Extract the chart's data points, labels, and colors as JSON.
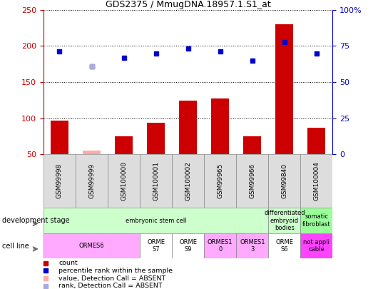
{
  "title": "GDS2375 / MmugDNA.18957.1.S1_at",
  "samples": [
    "GSM99998",
    "GSM99999",
    "GSM100000",
    "GSM100001",
    "GSM100002",
    "GSM99965",
    "GSM99966",
    "GSM99840",
    "GSM100004"
  ],
  "count_values": [
    97,
    55,
    75,
    94,
    124,
    127,
    75,
    230,
    87
  ],
  "count_absent": [
    false,
    true,
    false,
    false,
    false,
    false,
    false,
    false,
    false
  ],
  "rank_values": [
    192,
    172,
    184,
    190,
    196,
    192,
    180,
    205,
    190
  ],
  "rank_absent": [
    false,
    false,
    false,
    false,
    false,
    false,
    false,
    false,
    false
  ],
  "ylim_left": [
    50,
    250
  ],
  "yticks_left": [
    50,
    100,
    150,
    200,
    250
  ],
  "ytick_labels_right": [
    "0",
    "25",
    "50",
    "75",
    "100%"
  ],
  "left_axis_color": "#cc0000",
  "right_axis_color": "#0000cc",
  "bar_color": "#cc0000",
  "bar_absent_color": "#ffaaaa",
  "rank_color": "#0000cc",
  "rank_absent_color": "#aaaadd",
  "dev_stage_groups": [
    {
      "label": "embryonic stem cell",
      "start": 0,
      "end": 7,
      "color": "#ccffcc"
    },
    {
      "label": "differentiated\nembryoid\nbodies",
      "start": 7,
      "end": 8,
      "color": "#ccffcc"
    },
    {
      "label": "somatic\nfibroblast",
      "start": 8,
      "end": 9,
      "color": "#99ff99"
    }
  ],
  "cell_line_groups": [
    {
      "label": "ORMES6",
      "start": 0,
      "end": 3,
      "color": "#ffaaff"
    },
    {
      "label": "ORME\nS7",
      "start": 3,
      "end": 4,
      "color": "#ffffff"
    },
    {
      "label": "ORME\nS9",
      "start": 4,
      "end": 5,
      "color": "#ffffff"
    },
    {
      "label": "ORMES1\n0",
      "start": 5,
      "end": 6,
      "color": "#ffaaff"
    },
    {
      "label": "ORMES1\n3",
      "start": 6,
      "end": 7,
      "color": "#ffaaff"
    },
    {
      "label": "ORME\nS6",
      "start": 7,
      "end": 8,
      "color": "#ffffff"
    },
    {
      "label": "not appli\ncable",
      "start": 8,
      "end": 9,
      "color": "#ff44ff"
    }
  ],
  "legend_items": [
    {
      "label": "count",
      "color": "#cc0000"
    },
    {
      "label": "percentile rank within the sample",
      "color": "#0000cc"
    },
    {
      "label": "value, Detection Call = ABSENT",
      "color": "#ffaaaa"
    },
    {
      "label": "rank, Detection Call = ABSENT",
      "color": "#aaaadd"
    }
  ],
  "bg_color": "#ffffff",
  "plot_bg_color": "#ffffff"
}
